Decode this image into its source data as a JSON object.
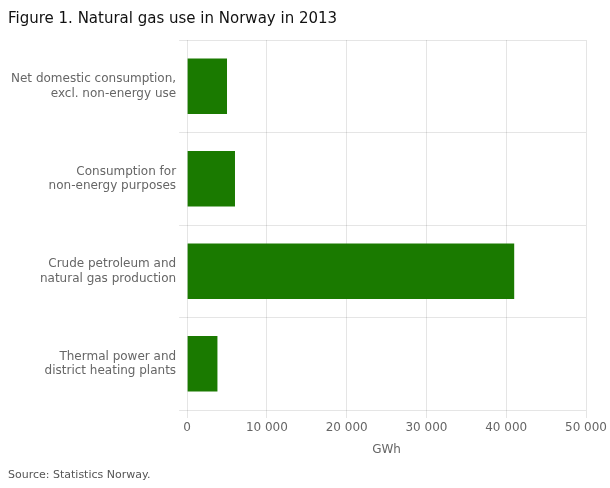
{
  "chart_data": {
    "type": "bar",
    "orientation": "horizontal",
    "title": "Figure 1. Natural gas use in Norway in 2013",
    "categories": [
      "Thermal power and\ndistrict heating plants",
      "Crude petroleum and\nnatural gas production",
      "Consumption for\nnon-energy purposes",
      "Net domestic consumption,\nexcl. non-energy use"
    ],
    "values": [
      3800,
      41000,
      6000,
      5000
    ],
    "color": "#1a7a00",
    "xlabel": "GWh",
    "xlim": [
      0,
      50000
    ],
    "xticks": [
      0,
      {
        "value": 10000,
        "label": "10 000"
      },
      {
        "value": 20000,
        "label": "20 000"
      },
      {
        "value": 30000,
        "label": "30 000"
      },
      {
        "value": 40000,
        "label": "40 000"
      },
      {
        "value": 50000,
        "label": "50 000"
      }
    ],
    "grid": true,
    "source": "Source: Statistics Norway."
  }
}
